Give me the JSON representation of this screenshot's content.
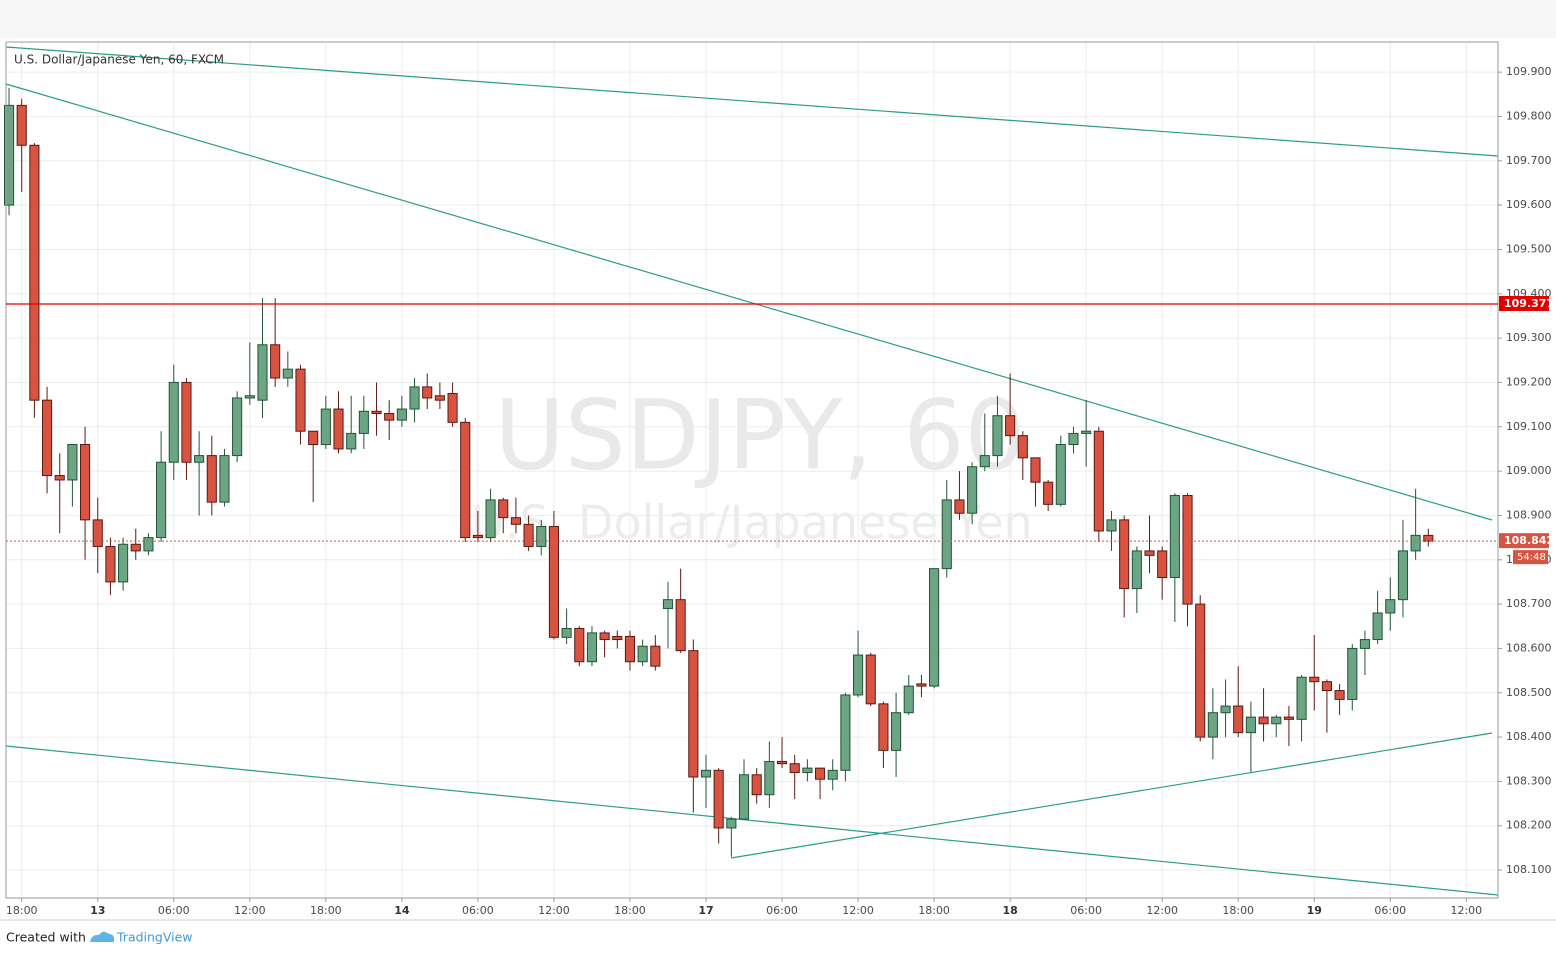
{
  "chart_data": {
    "type": "candlestick",
    "title": "U.S. Dollar/Japanese Yen, 60, FXCM",
    "watermark": "USDJPY, 60",
    "watermark_subtitle": "U.S. Dollar/Japanese Yen",
    "footer_text": "Created with",
    "footer_brand": "TradingView",
    "up_color": "#6ba583",
    "down_color": "#d75442",
    "grid": true,
    "xlim": [
      -0.24,
      117.5
    ],
    "xticks": [
      {
        "value": 1,
        "label": "18:00"
      },
      {
        "value": 7,
        "label": "13"
      },
      {
        "value": 13,
        "label": "06:00"
      },
      {
        "value": 19,
        "label": "12:00"
      },
      {
        "value": 25,
        "label": "18:00"
      },
      {
        "value": 31,
        "label": "14"
      },
      {
        "value": 37,
        "label": "06:00"
      },
      {
        "value": 43,
        "label": "12:00"
      },
      {
        "value": 49,
        "label": "18:00"
      },
      {
        "value": 55,
        "label": "17"
      },
      {
        "value": 61,
        "label": "06:00"
      },
      {
        "value": 67,
        "label": "12:00"
      },
      {
        "value": 73,
        "label": "18:00"
      },
      {
        "value": 79,
        "label": "18"
      },
      {
        "value": 85,
        "label": "06:00"
      },
      {
        "value": 91,
        "label": "12:00"
      },
      {
        "value": 97,
        "label": "18:00"
      },
      {
        "value": 103,
        "label": "19"
      },
      {
        "value": 109,
        "label": "06:00"
      },
      {
        "value": 115,
        "label": "12:00"
      }
    ],
    "ylim": [
      108.037,
      109.968
    ],
    "yticks": [
      {
        "value": 108.1,
        "label": "108.100"
      },
      {
        "value": 108.2,
        "label": "108.200"
      },
      {
        "value": 108.3,
        "label": "108.300"
      },
      {
        "value": 108.4,
        "label": "108.400"
      },
      {
        "value": 108.5,
        "label": "108.500"
      },
      {
        "value": 108.6,
        "label": "108.600"
      },
      {
        "value": 108.7,
        "label": "108.700"
      },
      {
        "value": 108.8,
        "label": "108.800"
      },
      {
        "value": 108.9,
        "label": "108.900"
      },
      {
        "value": 109.0,
        "label": "109.000"
      },
      {
        "value": 109.1,
        "label": "109.100"
      },
      {
        "value": 109.2,
        "label": "109.200"
      },
      {
        "value": 109.3,
        "label": "109.300"
      },
      {
        "value": 109.4,
        "label": "109.400"
      },
      {
        "value": 109.5,
        "label": "109.500"
      },
      {
        "value": 109.6,
        "label": "109.600"
      },
      {
        "value": 109.7,
        "label": "109.700"
      },
      {
        "value": 109.8,
        "label": "109.800"
      },
      {
        "value": 109.9,
        "label": "109.900"
      }
    ],
    "level_line": {
      "value": 109.377,
      "color": "#e00000"
    },
    "last_price": 108.842,
    "countdown": "54:48",
    "x": [
      0,
      1,
      2,
      3,
      4,
      5,
      6,
      7,
      8,
      9,
      10,
      11,
      12,
      13,
      14,
      15,
      16,
      17,
      18,
      19,
      20,
      21,
      22,
      23,
      24,
      25,
      26,
      27,
      28,
      29,
      30,
      31,
      32,
      33,
      34,
      35,
      36,
      37,
      38,
      39,
      40,
      41,
      42,
      43,
      44,
      45,
      46,
      47,
      48,
      49,
      50,
      51,
      52,
      53,
      54,
      55,
      56,
      57,
      58,
      59,
      60,
      61,
      62,
      63,
      64,
      65,
      66,
      67,
      68,
      69,
      70,
      71,
      72,
      73,
      74,
      75,
      76,
      77,
      78,
      79,
      80,
      81,
      82,
      83,
      84,
      85,
      86,
      87,
      88,
      89,
      90,
      91,
      92,
      93,
      94,
      95,
      96,
      97,
      98,
      99,
      100,
      101,
      102,
      103,
      104,
      105,
      106,
      107,
      108,
      109,
      110,
      111,
      112
    ],
    "open": [
      109.6,
      109.825,
      109.735,
      109.16,
      108.99,
      108.98,
      109.06,
      108.89,
      108.83,
      108.75,
      108.835,
      108.82,
      108.85,
      109.02,
      109.2,
      109.02,
      109.035,
      108.93,
      109.035,
      109.165,
      109.16,
      109.285,
      109.21,
      109.23,
      109.09,
      109.06,
      109.14,
      109.05,
      109.085,
      109.135,
      109.13,
      109.115,
      109.14,
      109.19,
      109.17,
      109.175,
      109.11,
      108.855,
      108.85,
      108.935,
      108.895,
      108.88,
      108.83,
      108.875,
      108.625,
      108.645,
      108.57,
      108.635,
      108.627,
      108.627,
      108.57,
      108.605,
      108.69,
      108.71,
      108.595,
      108.31,
      108.325,
      108.195,
      108.215,
      108.315,
      108.27,
      108.345,
      108.34,
      108.32,
      108.33,
      108.305,
      108.325,
      108.495,
      108.585,
      108.475,
      108.37,
      108.455,
      108.52,
      108.515,
      108.78,
      108.935,
      108.905,
      109.01,
      109.035,
      109.125,
      109.08,
      109.03,
      108.975,
      108.925,
      109.06,
      109.085,
      109.09,
      108.865,
      108.89,
      108.735,
      108.82,
      108.82,
      108.76,
      108.945,
      108.7,
      108.4,
      108.455,
      108.47,
      108.41,
      108.445,
      108.43,
      108.445,
      108.44,
      108.535,
      108.525,
      108.505,
      108.485,
      108.6,
      108.62,
      108.68,
      108.71,
      108.82,
      108.855
    ],
    "high": [
      109.864,
      109.84,
      109.74,
      109.19,
      109.04,
      109.06,
      109.1,
      108.94,
      108.85,
      108.85,
      108.87,
      108.86,
      109.09,
      109.24,
      109.21,
      109.09,
      109.08,
      109.05,
      109.18,
      109.29,
      109.39,
      109.39,
      109.27,
      109.24,
      109.09,
      109.17,
      109.18,
      109.17,
      109.17,
      109.2,
      109.16,
      109.17,
      109.21,
      109.22,
      109.2,
      109.2,
      109.12,
      108.91,
      108.96,
      108.94,
      108.94,
      108.9,
      108.89,
      108.91,
      108.69,
      108.65,
      108.65,
      108.64,
      108.64,
      108.64,
      108.62,
      108.63,
      108.75,
      108.78,
      108.62,
      108.36,
      108.33,
      108.22,
      108.35,
      108.33,
      108.39,
      108.4,
      108.36,
      108.35,
      108.33,
      108.35,
      108.5,
      108.64,
      108.59,
      108.48,
      108.5,
      108.54,
      108.54,
      108.78,
      108.98,
      109.0,
      109.02,
      109.13,
      109.17,
      109.22,
      109.09,
      109.03,
      108.98,
      109.08,
      109.1,
      109.16,
      109.1,
      108.91,
      108.9,
      108.83,
      108.9,
      108.83,
      108.95,
      108.95,
      108.72,
      108.51,
      108.53,
      108.56,
      108.48,
      108.51,
      108.45,
      108.47,
      108.54,
      108.63,
      108.53,
      108.52,
      108.61,
      108.64,
      108.73,
      108.76,
      108.89,
      108.96,
      108.87
    ],
    "low": [
      109.577,
      109.63,
      109.12,
      108.95,
      108.86,
      108.92,
      108.8,
      108.77,
      108.72,
      108.73,
      108.8,
      108.81,
      108.84,
      108.98,
      108.98,
      108.9,
      108.9,
      108.92,
      109.02,
      109.15,
      109.12,
      109.19,
      109.19,
      109.06,
      108.93,
      109.05,
      109.04,
      109.04,
      109.05,
      109.08,
      109.07,
      109.1,
      109.11,
      109.14,
      109.14,
      109.1,
      108.84,
      108.84,
      108.84,
      108.86,
      108.86,
      108.82,
      108.81,
      108.62,
      108.61,
      108.56,
      108.56,
      108.58,
      108.6,
      108.55,
      108.56,
      108.55,
      108.6,
      108.59,
      108.23,
      108.24,
      108.16,
      108.13,
      108.22,
      108.25,
      108.24,
      108.33,
      108.26,
      108.3,
      108.26,
      108.28,
      108.3,
      108.49,
      108.47,
      108.33,
      108.31,
      108.45,
      108.49,
      108.51,
      108.76,
      108.89,
      108.88,
      109.0,
      109.01,
      109.06,
      108.98,
      108.92,
      108.91,
      108.92,
      109.04,
      109.01,
      108.84,
      108.82,
      108.67,
      108.68,
      108.77,
      108.71,
      108.66,
      108.65,
      108.39,
      108.35,
      108.4,
      108.4,
      108.32,
      108.39,
      108.4,
      108.38,
      108.39,
      108.46,
      108.41,
      108.45,
      108.46,
      108.54,
      108.61,
      108.64,
      108.67,
      108.8,
      108.83
    ],
    "close": [
      109.825,
      109.735,
      109.16,
      108.99,
      108.98,
      109.06,
      108.89,
      108.83,
      108.75,
      108.835,
      108.82,
      108.85,
      109.02,
      109.2,
      109.02,
      109.035,
      108.93,
      109.035,
      109.165,
      109.17,
      109.285,
      109.21,
      109.23,
      109.09,
      109.06,
      109.14,
      109.05,
      109.085,
      109.135,
      109.13,
      109.115,
      109.14,
      109.19,
      109.165,
      109.16,
      109.11,
      108.85,
      108.85,
      108.935,
      108.895,
      108.88,
      108.83,
      108.875,
      108.625,
      108.645,
      108.57,
      108.635,
      108.62,
      108.62,
      108.57,
      108.605,
      108.56,
      108.71,
      108.595,
      108.31,
      108.325,
      108.195,
      108.215,
      108.315,
      108.27,
      108.345,
      108.34,
      108.32,
      108.33,
      108.305,
      108.325,
      108.495,
      108.585,
      108.475,
      108.37,
      108.455,
      108.515,
      108.515,
      108.78,
      108.935,
      108.905,
      109.01,
      109.035,
      109.125,
      109.08,
      109.03,
      108.975,
      108.925,
      109.06,
      109.085,
      109.09,
      108.865,
      108.89,
      108.735,
      108.82,
      108.81,
      108.76,
      108.945,
      108.7,
      108.4,
      108.455,
      108.47,
      108.41,
      108.445,
      108.43,
      108.445,
      108.44,
      108.535,
      108.525,
      108.505,
      108.485,
      108.6,
      108.62,
      108.68,
      108.71,
      108.82,
      108.855,
      108.842
    ]
  }
}
